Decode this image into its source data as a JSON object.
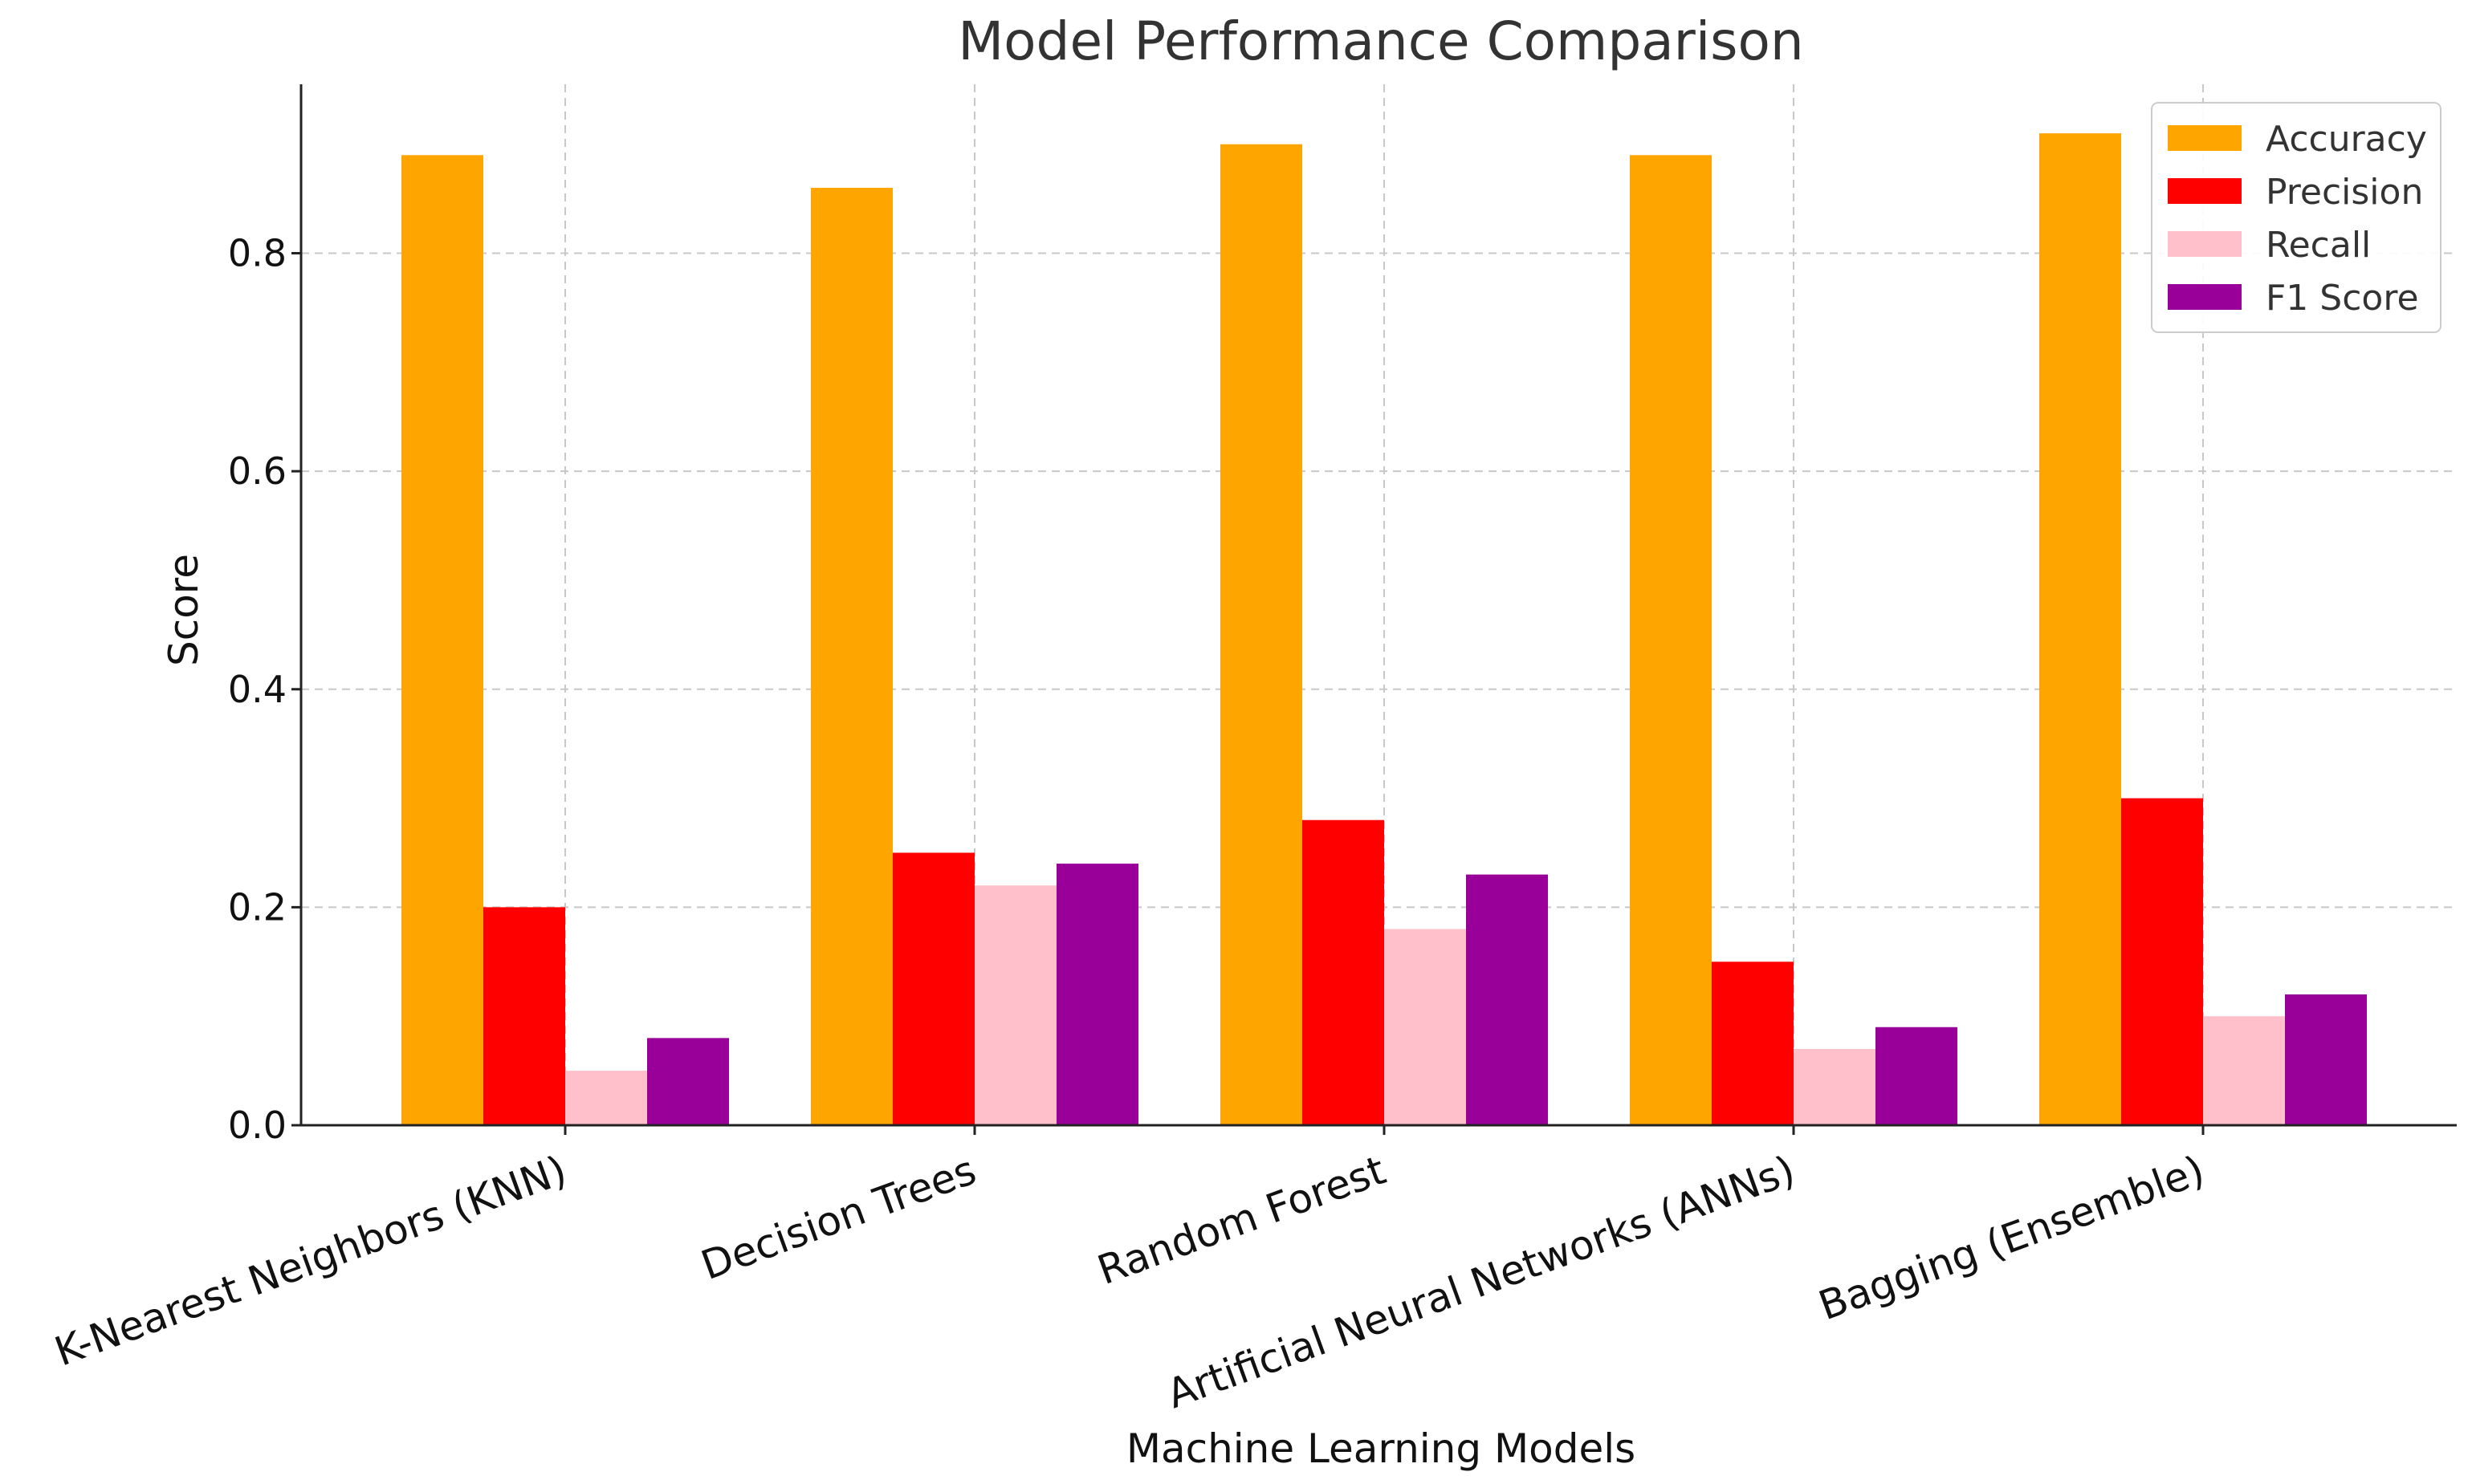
{
  "chart_data": {
    "type": "bar",
    "title": "Model Performance Comparison",
    "xlabel": "Machine Learning Models",
    "ylabel": "Score",
    "ylim": [
      0,
      0.955
    ],
    "yticks": [
      0.0,
      0.2,
      0.4,
      0.6,
      0.8
    ],
    "ytick_labels": [
      "0.0",
      "0.2",
      "0.4",
      "0.6",
      "0.8"
    ],
    "grid": true,
    "legend_position": "top-right",
    "categories": [
      "K-Nearest Neighbors (KNN)",
      "Decision Trees",
      "Random Forest",
      "Artificial Neural Networks (ANNs)",
      "Bagging (Ensemble)"
    ],
    "series": [
      {
        "name": "Accuracy",
        "color": "#FFA500",
        "values": [
          0.89,
          0.86,
          0.9,
          0.89,
          0.91
        ]
      },
      {
        "name": "Precision",
        "color": "#FF0000",
        "values": [
          0.2,
          0.25,
          0.28,
          0.15,
          0.3
        ]
      },
      {
        "name": "Recall",
        "color": "#FFC0CB",
        "values": [
          0.05,
          0.22,
          0.18,
          0.07,
          0.1
        ]
      },
      {
        "name": "F1 Score",
        "color": "#990099",
        "values": [
          0.08,
          0.24,
          0.23,
          0.09,
          0.12
        ]
      }
    ]
  }
}
